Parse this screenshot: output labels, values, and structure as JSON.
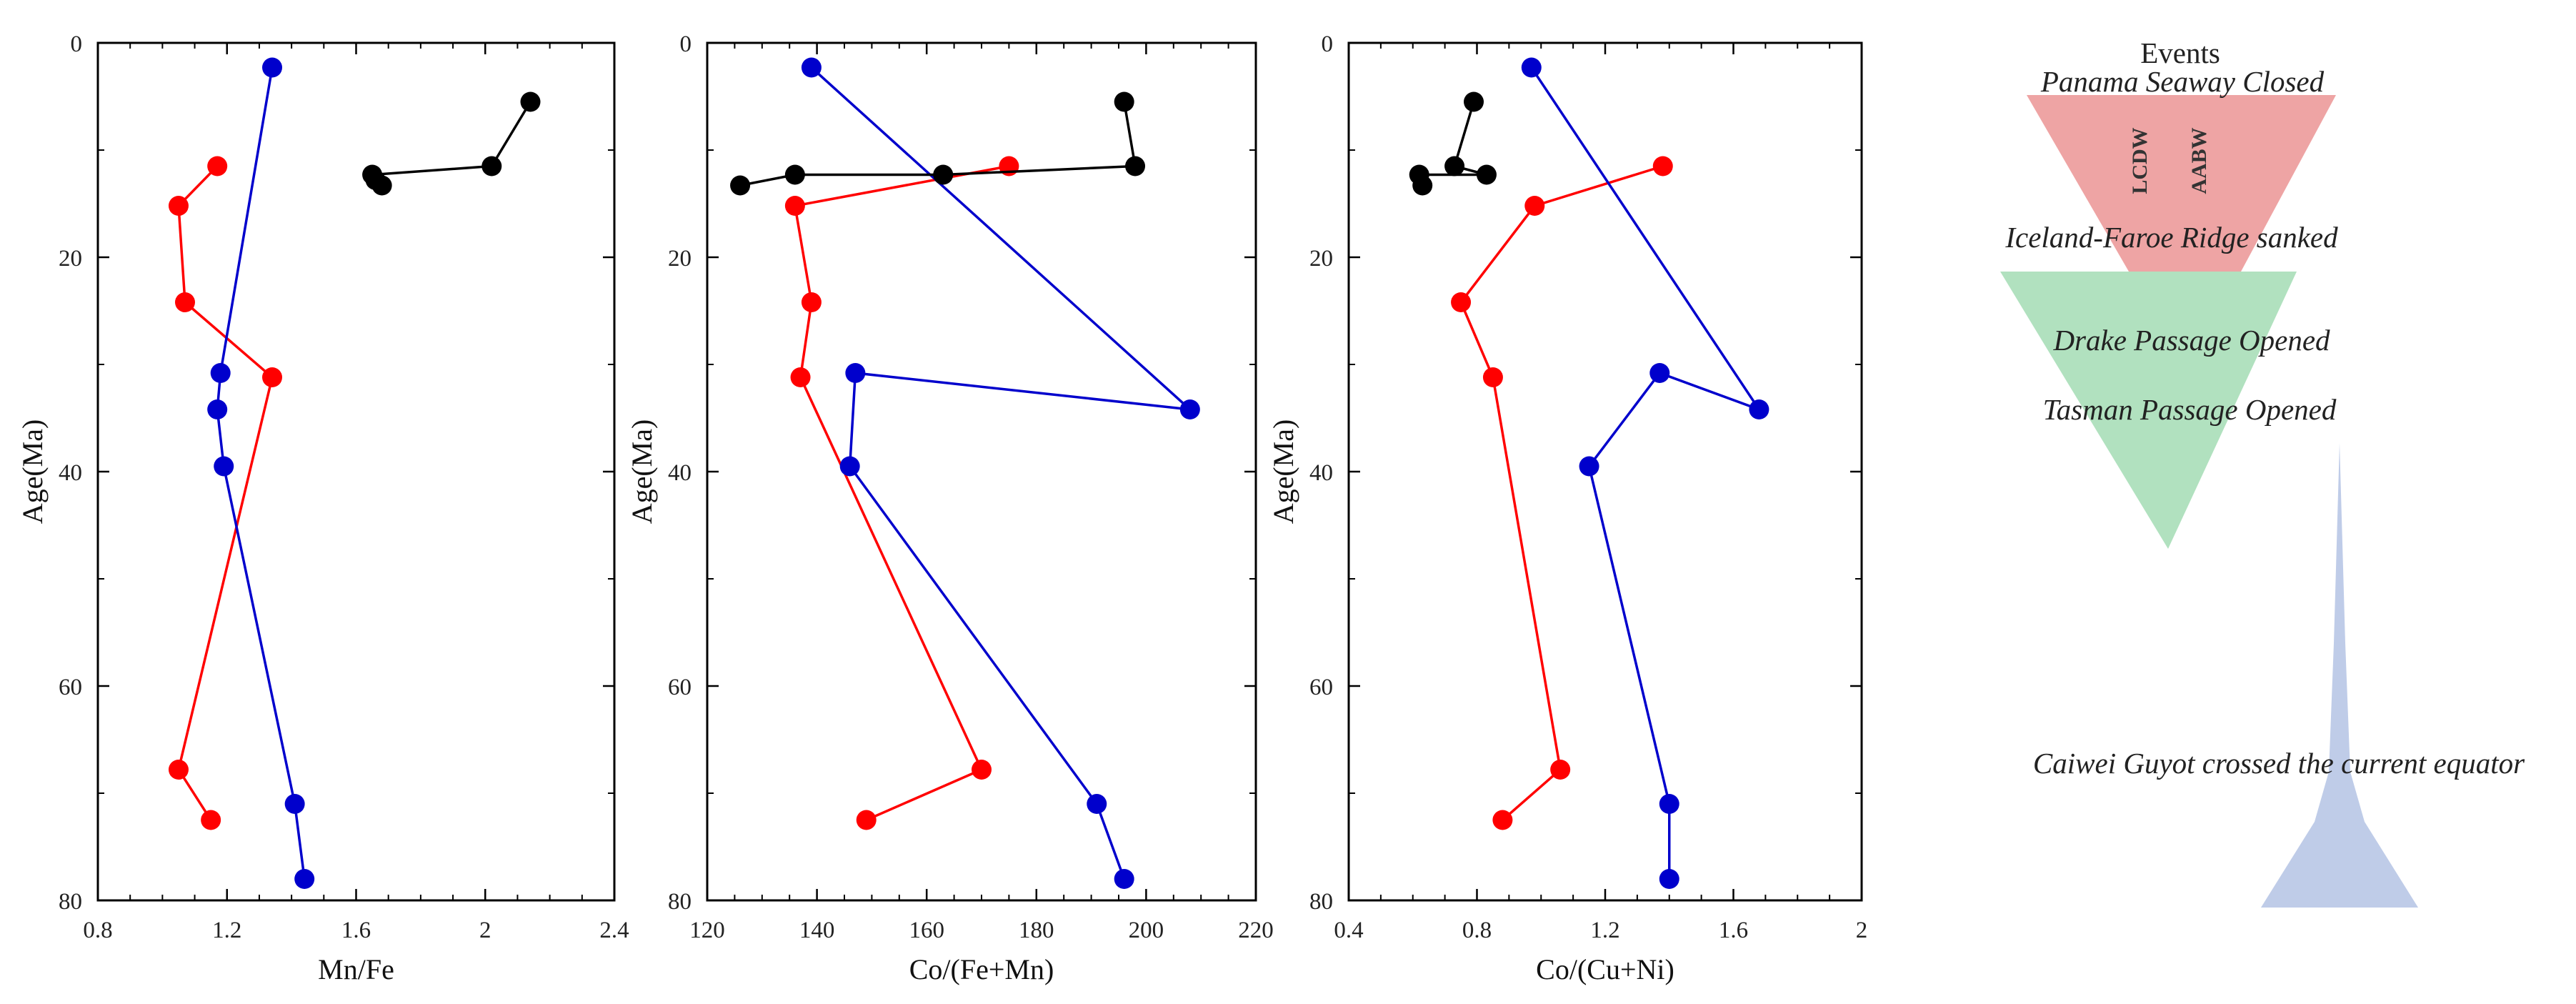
{
  "colors": {
    "red": "#ff0000",
    "blue": "#0000cc",
    "black": "#000000",
    "lcdw_fill": "#ec9a9a",
    "aabw_fill": "#a8deb8",
    "equator_fill": "#b8c6e6"
  },
  "chart_data": [
    {
      "type": "line",
      "xlabel": "Mn/Fe",
      "ylabel": "Age(Ma)",
      "xlim": [
        0.8,
        2.4
      ],
      "ylim": [
        0,
        80
      ],
      "xticks": [
        0.8,
        1.2,
        1.6,
        2,
        2.4
      ],
      "xtick_labels": [
        "0.8",
        "1.2",
        "1.6",
        "2",
        "2.4"
      ],
      "yticks": [
        0,
        20,
        40,
        60,
        80
      ],
      "ytick_labels": [
        "0",
        "20",
        "40",
        "60",
        "80"
      ],
      "series": [
        {
          "color": "red",
          "points": [
            [
              1.17,
              11.5
            ],
            [
              1.05,
              15.2
            ],
            [
              1.07,
              24.2
            ],
            [
              1.34,
              31.2
            ],
            [
              1.05,
              67.8
            ],
            [
              1.15,
              72.5
            ]
          ]
        },
        {
          "color": "blue",
          "points": [
            [
              1.34,
              2.3
            ],
            [
              1.18,
              30.8
            ],
            [
              1.17,
              34.2
            ],
            [
              1.19,
              39.5
            ],
            [
              1.41,
              71
            ],
            [
              1.44,
              78
            ]
          ]
        },
        {
          "color": "black",
          "points": [
            [
              2.14,
              5.5
            ],
            [
              2.02,
              11.5
            ],
            [
              1.65,
              12.3
            ],
            [
              1.66,
              12.8
            ],
            [
              1.68,
              13.3
            ]
          ]
        }
      ]
    },
    {
      "type": "line",
      "xlabel": "Co/(Fe+Mn)",
      "ylabel": "Age(Ma)",
      "xlim": [
        120,
        220
      ],
      "ylim": [
        0,
        80
      ],
      "xticks": [
        120,
        140,
        160,
        180,
        200,
        220
      ],
      "xtick_labels": [
        "120",
        "140",
        "160",
        "180",
        "200",
        "220"
      ],
      "yticks": [
        0,
        20,
        40,
        60,
        80
      ],
      "ytick_labels": [
        "0",
        "20",
        "40",
        "60",
        "80"
      ],
      "series": [
        {
          "color": "red",
          "points": [
            [
              175,
              11.5
            ],
            [
              136,
              15.2
            ],
            [
              139,
              24.2
            ],
            [
              137,
              31.2
            ],
            [
              170,
              67.8
            ],
            [
              149,
              72.5
            ]
          ]
        },
        {
          "color": "blue",
          "points": [
            [
              139,
              2.3
            ],
            [
              208,
              34.2
            ],
            [
              147,
              30.8
            ],
            [
              146,
              39.5
            ],
            [
              191,
              71
            ],
            [
              196,
              78
            ]
          ]
        },
        {
          "color": "black",
          "points": [
            [
              196,
              5.5
            ],
            [
              198,
              11.5
            ],
            [
              163,
              12.3
            ],
            [
              136,
              12.3
            ],
            [
              126,
              13.3
            ]
          ]
        }
      ]
    },
    {
      "type": "line",
      "xlabel": "Co/(Cu+Ni)",
      "ylabel": "Age(Ma)",
      "xlim": [
        0.4,
        2
      ],
      "ylim": [
        0,
        80
      ],
      "xticks": [
        0.4,
        0.8,
        1.2,
        1.6,
        2
      ],
      "xtick_labels": [
        "0.4",
        "0.8",
        "1.2",
        "1.6",
        "2"
      ],
      "yticks": [
        0,
        20,
        40,
        60,
        80
      ],
      "ytick_labels": [
        "0",
        "20",
        "40",
        "60",
        "80"
      ],
      "series": [
        {
          "color": "red",
          "points": [
            [
              1.38,
              11.5
            ],
            [
              0.98,
              15.2
            ],
            [
              0.75,
              24.2
            ],
            [
              0.85,
              31.2
            ],
            [
              1.06,
              67.8
            ],
            [
              0.88,
              72.5
            ]
          ]
        },
        {
          "color": "blue",
          "points": [
            [
              0.97,
              2.3
            ],
            [
              1.68,
              34.2
            ],
            [
              1.37,
              30.8
            ],
            [
              1.15,
              39.5
            ],
            [
              1.4,
              71
            ],
            [
              1.4,
              78
            ]
          ]
        },
        {
          "color": "black",
          "points": [
            [
              0.79,
              5.5
            ],
            [
              0.73,
              11.5
            ],
            [
              0.83,
              12.3
            ],
            [
              0.62,
              12.3
            ],
            [
              0.63,
              13.3
            ]
          ]
        }
      ]
    }
  ],
  "events_panel": {
    "title": "Events",
    "items": [
      {
        "key": "panama",
        "label": "Panama Seaway Closed"
      },
      {
        "key": "iceland",
        "label": "Iceland-Faroe Ridge sanked"
      },
      {
        "key": "drake",
        "label": "Drake Passage Opened"
      },
      {
        "key": "tasman",
        "label": "Tasman Passage Opened"
      },
      {
        "key": "caiwei",
        "label": "Caiwei Guyot crossed the current equator"
      }
    ],
    "water_masses": {
      "lcdw": "LCDW",
      "aabw": "AABW"
    }
  }
}
